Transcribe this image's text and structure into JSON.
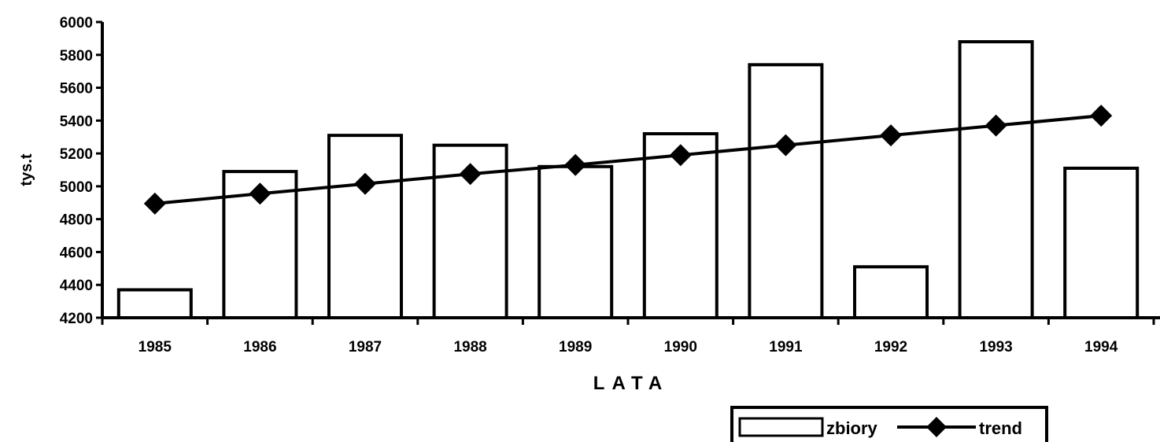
{
  "chart_data": {
    "type": "bar",
    "title": "",
    "xlabel": "LATA",
    "ylabel": "tys.t",
    "categories": [
      "1985",
      "1986",
      "1987",
      "1988",
      "1989",
      "1990",
      "1991",
      "1992",
      "1993",
      "1994"
    ],
    "ylim": [
      4200,
      6000
    ],
    "yticks": [
      "4200",
      "4400",
      "4600",
      "4800",
      "5000",
      "5200",
      "5400",
      "5600",
      "5800",
      "6000"
    ],
    "series": [
      {
        "name": "zbiory",
        "type": "bar",
        "values": [
          4370,
          5090,
          5310,
          5250,
          5120,
          5320,
          5740,
          4510,
          5880,
          5110
        ]
      },
      {
        "name": "trend",
        "type": "line",
        "marker": "diamond",
        "values": [
          4895,
          4955,
          5015,
          5075,
          5130,
          5190,
          5250,
          5310,
          5370,
          5430
        ]
      }
    ],
    "grid": false,
    "legend": "bottom-right",
    "colors": {
      "bar_fill": "#ffffff",
      "bar_stroke": "#000000",
      "line": "#000000"
    }
  }
}
